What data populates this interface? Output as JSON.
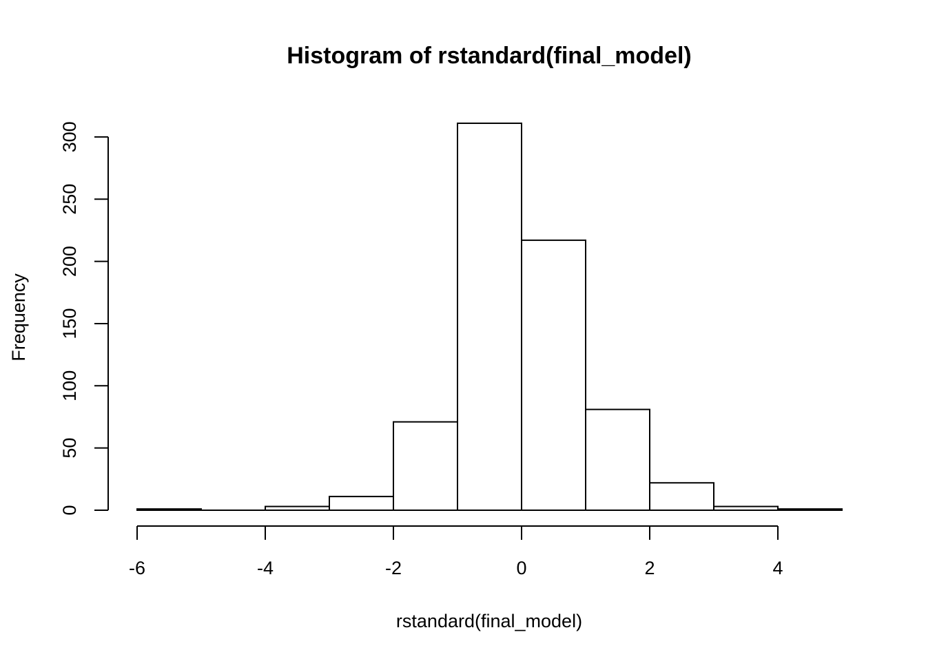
{
  "chart_data": {
    "type": "bar",
    "subtype": "histogram",
    "title": "Histogram of rstandard(final_model)",
    "xlabel": "rstandard(final_model)",
    "ylabel": "Frequency",
    "bins": [
      {
        "start": -6,
        "end": -5,
        "count": 1
      },
      {
        "start": -5,
        "end": -4,
        "count": 0
      },
      {
        "start": -4,
        "end": -3,
        "count": 3
      },
      {
        "start": -3,
        "end": -2,
        "count": 11
      },
      {
        "start": -2,
        "end": -1,
        "count": 71
      },
      {
        "start": -1,
        "end": 0,
        "count": 311
      },
      {
        "start": 0,
        "end": 1,
        "count": 217
      },
      {
        "start": 1,
        "end": 2,
        "count": 81
      },
      {
        "start": 2,
        "end": 3,
        "count": 22
      },
      {
        "start": 3,
        "end": 4,
        "count": 3
      },
      {
        "start": 4,
        "end": 5,
        "count": 1
      }
    ],
    "x_ticks": [
      "-6",
      "-4",
      "-2",
      "0",
      "2",
      "4"
    ],
    "y_ticks": [
      "0",
      "50",
      "100",
      "150",
      "200",
      "250",
      "300"
    ],
    "xlim": [
      -6,
      5
    ],
    "ylim": [
      0,
      311
    ],
    "grid": false,
    "bar_fill": "#ffffff",
    "bar_stroke": "#000000"
  }
}
